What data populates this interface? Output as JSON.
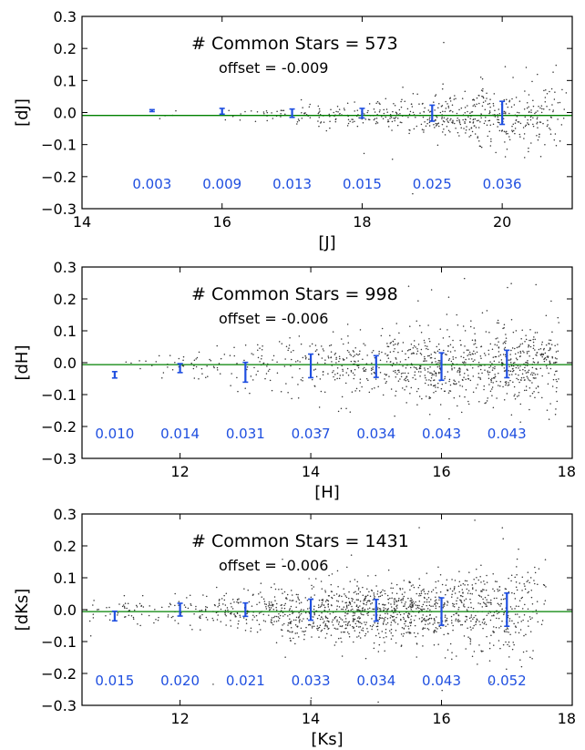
{
  "colors": {
    "points": "#333333",
    "errorbars": "#1f4fe0",
    "error_labels": "#1f4fe0",
    "offset_line": "#008000",
    "frame": "#000000"
  },
  "chart_data": [
    {
      "type": "scatter",
      "title": "",
      "xlabel": "[J]",
      "ylabel": "[dJ]",
      "xlim": [
        14,
        21
      ],
      "ylim": [
        -0.3,
        0.3
      ],
      "xticks": [
        "14",
        "16",
        "18",
        "20"
      ],
      "xtick_values": [
        14,
        16,
        18,
        20
      ],
      "yticks": [
        "0.3",
        "0.2",
        "0.1",
        "0.0",
        "−0.1",
        "−0.2",
        "−0.3"
      ],
      "ytick_values": [
        0.3,
        0.2,
        0.1,
        0.0,
        -0.1,
        -0.2,
        -0.3
      ],
      "grid": false,
      "annotation": "# Common Stars = 573",
      "common_stars": 573,
      "offset_label": "offset = -0.009",
      "offset": -0.009,
      "error_bins": [
        {
          "x": 15,
          "mean": 0.006,
          "sigma": 0.003,
          "label": "0.003"
        },
        {
          "x": 16,
          "mean": 0.004,
          "sigma": 0.009,
          "label": "0.009"
        },
        {
          "x": 17,
          "mean": -0.002,
          "sigma": 0.013,
          "label": "0.013"
        },
        {
          "x": 18,
          "mean": -0.002,
          "sigma": 0.015,
          "label": "0.015"
        },
        {
          "x": 19,
          "mean": -0.002,
          "sigma": 0.025,
          "label": "0.025"
        },
        {
          "x": 20,
          "mean": -0.001,
          "sigma": 0.036,
          "label": "0.036"
        }
      ],
      "scatter_profile": {
        "n": 573,
        "x_range": [
          15,
          21
        ],
        "density": [
          [
            15,
            0.02
          ],
          [
            16,
            0.05
          ],
          [
            17,
            0.2
          ],
          [
            18,
            0.55
          ],
          [
            19,
            1.0
          ],
          [
            20,
            1.4
          ],
          [
            20.6,
            0.9
          ],
          [
            21,
            0
          ]
        ],
        "sigma_vs_x": [
          [
            15,
            0.004
          ],
          [
            16,
            0.009
          ],
          [
            17,
            0.013
          ],
          [
            18,
            0.015
          ],
          [
            19,
            0.026
          ],
          [
            20,
            0.038
          ],
          [
            21,
            0.05
          ]
        ]
      }
    },
    {
      "type": "scatter",
      "title": "",
      "xlabel": "[H]",
      "ylabel": "[dH]",
      "xlim": [
        10.5,
        18
      ],
      "ylim": [
        -0.3,
        0.3
      ],
      "xticks": [
        "12",
        "14",
        "16",
        "18"
      ],
      "xtick_values": [
        12,
        14,
        16,
        18
      ],
      "yticks": [
        "0.3",
        "0.2",
        "0.1",
        "0.0",
        "−0.1",
        "−0.2",
        "−0.3"
      ],
      "ytick_values": [
        0.3,
        0.2,
        0.1,
        0.0,
        -0.1,
        -0.2,
        -0.3
      ],
      "grid": false,
      "annotation": "# Common Stars = 998",
      "common_stars": 998,
      "offset_label": "offset = -0.006",
      "offset": -0.006,
      "error_bins": [
        {
          "x": 11,
          "mean": -0.038,
          "sigma": 0.01,
          "label": "0.010"
        },
        {
          "x": 12,
          "mean": -0.017,
          "sigma": 0.014,
          "label": "0.014"
        },
        {
          "x": 13,
          "mean": -0.03,
          "sigma": 0.031,
          "label": "0.031"
        },
        {
          "x": 14,
          "mean": -0.01,
          "sigma": 0.037,
          "label": "0.037"
        },
        {
          "x": 15,
          "mean": -0.012,
          "sigma": 0.034,
          "label": "0.034"
        },
        {
          "x": 16,
          "mean": -0.012,
          "sigma": 0.043,
          "label": "0.043"
        },
        {
          "x": 17,
          "mean": -0.004,
          "sigma": 0.043,
          "label": "0.043"
        }
      ],
      "scatter_profile": {
        "n": 998,
        "x_range": [
          11,
          17.8
        ],
        "density": [
          [
            11,
            0.05
          ],
          [
            12,
            0.1
          ],
          [
            13,
            0.2
          ],
          [
            14,
            0.4
          ],
          [
            15,
            0.8
          ],
          [
            16,
            1.3
          ],
          [
            17,
            1.5
          ],
          [
            17.8,
            1.1
          ]
        ],
        "sigma_vs_x": [
          [
            11,
            0.01
          ],
          [
            12,
            0.015
          ],
          [
            13,
            0.03
          ],
          [
            14,
            0.036
          ],
          [
            15,
            0.035
          ],
          [
            16,
            0.043
          ],
          [
            17,
            0.045
          ],
          [
            17.8,
            0.05
          ]
        ]
      }
    },
    {
      "type": "scatter",
      "title": "",
      "xlabel": "[Ks]",
      "ylabel": "[dKs]",
      "xlim": [
        10.5,
        18
      ],
      "ylim": [
        -0.3,
        0.3
      ],
      "xticks": [
        "12",
        "14",
        "16",
        "18"
      ],
      "xtick_values": [
        12,
        14,
        16,
        18
      ],
      "yticks": [
        "0.3",
        "0.2",
        "0.1",
        "0.0",
        "−0.1",
        "−0.2",
        "−0.3"
      ],
      "ytick_values": [
        0.3,
        0.2,
        0.1,
        0.0,
        -0.1,
        -0.2,
        -0.3
      ],
      "grid": false,
      "annotation": "# Common Stars = 1431",
      "common_stars": 1431,
      "offset_label": "offset = -0.006",
      "offset": -0.006,
      "error_bins": [
        {
          "x": 11,
          "mean": -0.02,
          "sigma": 0.015,
          "label": "0.015"
        },
        {
          "x": 12,
          "mean": 0.0,
          "sigma": 0.02,
          "label": "0.020"
        },
        {
          "x": 13,
          "mean": 0.0,
          "sigma": 0.021,
          "label": "0.021"
        },
        {
          "x": 14,
          "mean": 0.0,
          "sigma": 0.033,
          "label": "0.033"
        },
        {
          "x": 15,
          "mean": -0.002,
          "sigma": 0.034,
          "label": "0.034"
        },
        {
          "x": 16,
          "mean": -0.006,
          "sigma": 0.043,
          "label": "0.043"
        },
        {
          "x": 17,
          "mean": 0.0,
          "sigma": 0.052,
          "label": "0.052"
        }
      ],
      "scatter_profile": {
        "n": 1431,
        "x_range": [
          10.5,
          17.6
        ],
        "density": [
          [
            10.5,
            0.15
          ],
          [
            11,
            0.2
          ],
          [
            12,
            0.3
          ],
          [
            13,
            0.5
          ],
          [
            14,
            1.0
          ],
          [
            15,
            1.6
          ],
          [
            16,
            1.5
          ],
          [
            17,
            1.0
          ],
          [
            17.6,
            0.4
          ]
        ],
        "sigma_vs_x": [
          [
            10.5,
            0.015
          ],
          [
            11,
            0.016
          ],
          [
            12,
            0.02
          ],
          [
            13,
            0.022
          ],
          [
            14,
            0.033
          ],
          [
            15,
            0.035
          ],
          [
            16,
            0.043
          ],
          [
            17,
            0.052
          ],
          [
            17.6,
            0.06
          ]
        ]
      }
    }
  ]
}
